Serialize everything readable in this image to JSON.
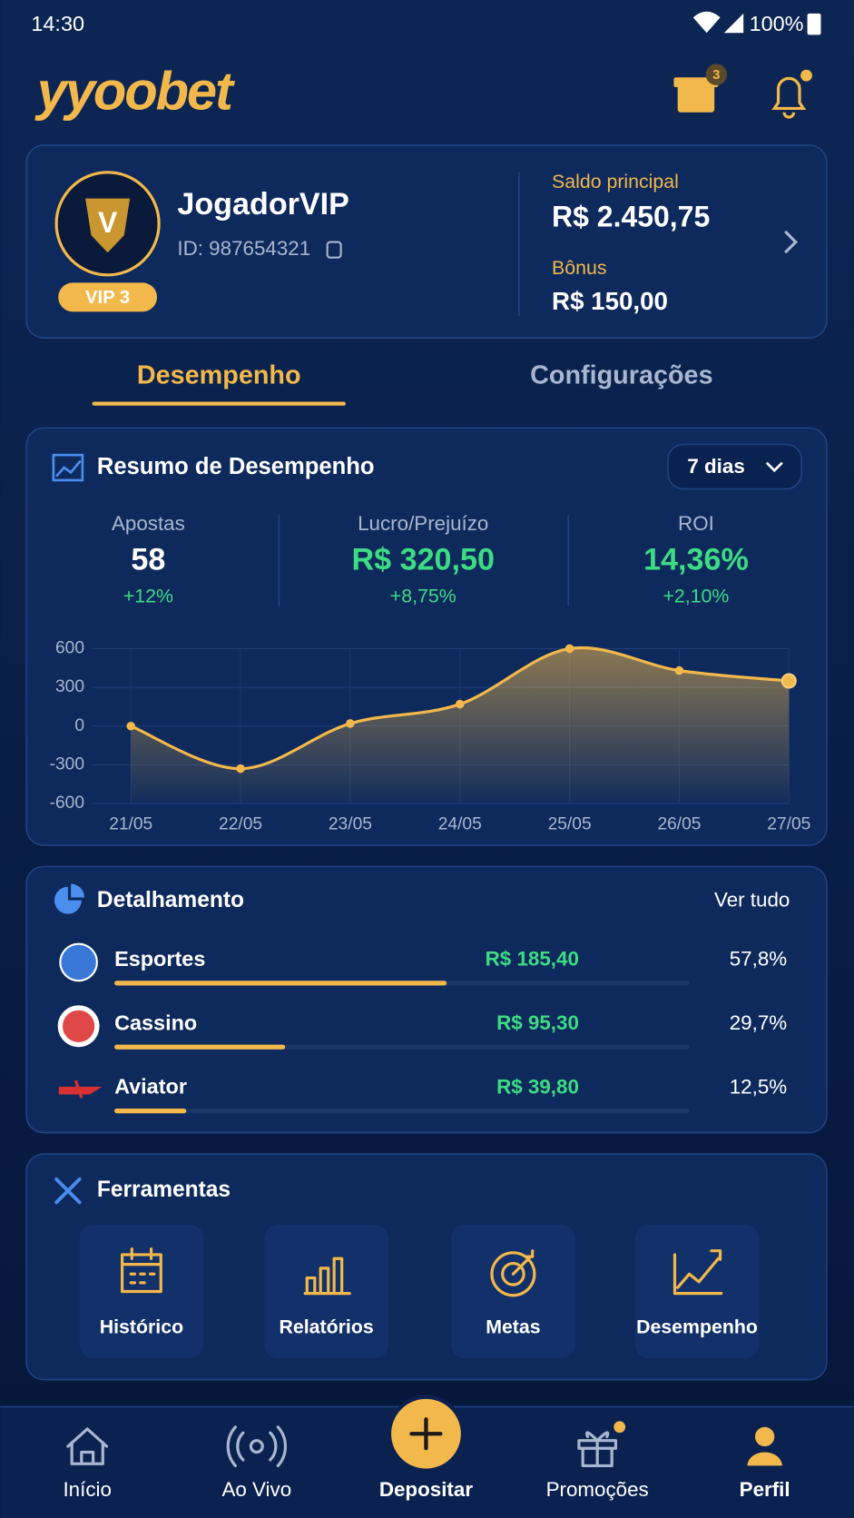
{
  "status_bar": {
    "time": "14:30",
    "battery": "100%"
  },
  "header": {
    "logo": "yyoobet",
    "gift_badge": "3"
  },
  "profile": {
    "username": "JogadorVIP",
    "id": "ID: 987654321",
    "vip": "VIP 3",
    "balance_label": "Saldo principal",
    "balance": "R$ 2.450,75",
    "bonus_label": "Bônus",
    "bonus": "R$ 150,00"
  },
  "tabs": [
    "Desempenho",
    "Configurações"
  ],
  "summary": {
    "title": "Resumo de Desempenho",
    "period": "7 dias",
    "stats": [
      {
        "label": "Apostas",
        "value": "58",
        "change": "+12%"
      },
      {
        "label": "Lucro/Prejuízo",
        "value": "R$ 320,50",
        "change": "+8,75%"
      },
      {
        "label": "ROI",
        "value": "14,36%",
        "change": "+2,10%"
      }
    ]
  },
  "chart_data": {
    "type": "line",
    "categories": [
      "21/05",
      "22/05",
      "23/05",
      "24/05",
      "25/05",
      "26/05",
      "27/05"
    ],
    "values": [
      0,
      -330,
      20,
      170,
      600,
      430,
      350
    ],
    "color": "#f2b84b",
    "ylim": [
      -600,
      600
    ],
    "yticks": [
      -600,
      -300,
      0,
      300,
      600
    ],
    "grid": true
  },
  "breakdown": {
    "title": "Detalhamento",
    "link": "Ver tudo",
    "items": [
      {
        "name": "Esportes",
        "amount": "R$ 185,40",
        "share": 57.8,
        "share_label": "57,8%"
      },
      {
        "name": "Cassino",
        "amount": "R$ 95,30",
        "share": 29.7,
        "share_label": "29,7%"
      },
      {
        "name": "Aviator",
        "amount": "R$ 39,80",
        "share": 12.5,
        "share_label": "12,5%"
      }
    ]
  },
  "tools": {
    "title": "Ferramentas",
    "items": [
      "Histórico",
      "Relatórios",
      "Metas",
      "Desempenho"
    ]
  },
  "nav": {
    "items": [
      "Início",
      "Ao Vivo",
      "Depositar",
      "Promoções",
      "Perfil"
    ]
  }
}
